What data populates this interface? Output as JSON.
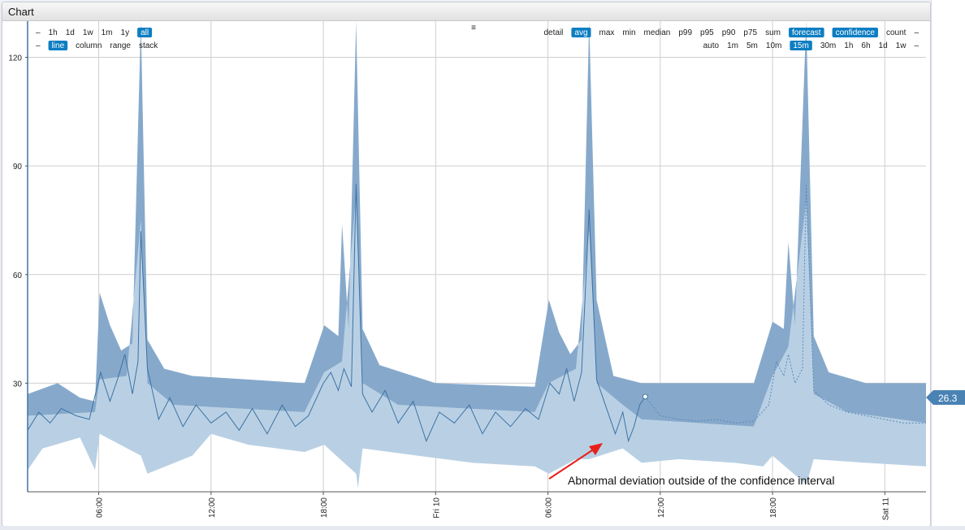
{
  "window": {
    "title": "Chart"
  },
  "toolbar": {
    "menu_glyph": "≡",
    "left_row1": [
      {
        "label": "–",
        "selected": false
      },
      {
        "label": "1h",
        "selected": false
      },
      {
        "label": "1d",
        "selected": false
      },
      {
        "label": "1w",
        "selected": false
      },
      {
        "label": "1m",
        "selected": false
      },
      {
        "label": "1y",
        "selected": false
      },
      {
        "label": "all",
        "selected": true
      }
    ],
    "left_row2": [
      {
        "label": "–",
        "selected": false
      },
      {
        "label": "line",
        "selected": true
      },
      {
        "label": "column",
        "selected": false
      },
      {
        "label": "range",
        "selected": false
      },
      {
        "label": "stack",
        "selected": false
      }
    ],
    "right_row1": [
      {
        "label": "detail",
        "selected": false
      },
      {
        "label": "avg",
        "selected": true
      },
      {
        "label": "max",
        "selected": false
      },
      {
        "label": "min",
        "selected": false
      },
      {
        "label": "median",
        "selected": false
      },
      {
        "label": "p99",
        "selected": false
      },
      {
        "label": "p95",
        "selected": false
      },
      {
        "label": "p90",
        "selected": false
      },
      {
        "label": "p75",
        "selected": false
      },
      {
        "label": "sum",
        "selected": false
      },
      {
        "label": "forecast",
        "selected": true
      },
      {
        "label": "confidence",
        "selected": true
      },
      {
        "label": "count",
        "selected": false
      },
      {
        "label": "–",
        "selected": false
      }
    ],
    "right_row2": [
      {
        "label": "auto",
        "selected": false
      },
      {
        "label": "1m",
        "selected": false
      },
      {
        "label": "5m",
        "selected": false
      },
      {
        "label": "10m",
        "selected": false
      },
      {
        "label": "15m",
        "selected": true
      },
      {
        "label": "30m",
        "selected": false
      },
      {
        "label": "1h",
        "selected": false
      },
      {
        "label": "6h",
        "selected": false
      },
      {
        "label": "1d",
        "selected": false
      },
      {
        "label": "1w",
        "selected": false
      },
      {
        "label": "–",
        "selected": false
      }
    ]
  },
  "value_badge": "26.3",
  "annotation": {
    "text": "Abnormal deviation outside of the confidence interval"
  },
  "colors": {
    "band_upper": "#86a9cb",
    "band_lower": "#b9d0e4",
    "line": "#3d72a4",
    "forecast": "#5a89b6",
    "badge": "#4a82b4",
    "selected_button": "#0d7ec2",
    "annotation_arrow": "#e8201a",
    "grid": "#cfcfcf",
    "axis": "#3f73a6"
  },
  "chart_data": {
    "type": "area",
    "x_unit": "hours since Thu 00:00",
    "x_range": [
      2.2,
      50.2
    ],
    "ylim": [
      0,
      130
    ],
    "y_ticks": [
      30,
      60,
      90,
      120
    ],
    "x_ticks": [
      {
        "x": 6,
        "label": "06:00"
      },
      {
        "x": 12,
        "label": "12:00"
      },
      {
        "x": 18,
        "label": "18:00"
      },
      {
        "x": 24,
        "label": "Fri 10"
      },
      {
        "x": 30,
        "label": "06:00"
      },
      {
        "x": 36,
        "label": "12:00"
      },
      {
        "x": 42,
        "label": "18:00"
      },
      {
        "x": 48,
        "label": "Sat 11"
      }
    ],
    "confidence_upper": [
      [
        2.2,
        27
      ],
      [
        3.8,
        30
      ],
      [
        5.0,
        26
      ],
      [
        5.8,
        25
      ],
      [
        6.05,
        55
      ],
      [
        6.6,
        46
      ],
      [
        7.2,
        39
      ],
      [
        7.8,
        41
      ],
      [
        8.25,
        130
      ],
      [
        8.6,
        42
      ],
      [
        9.5,
        34
      ],
      [
        11,
        32
      ],
      [
        14,
        31
      ],
      [
        17,
        30
      ],
      [
        18.05,
        46
      ],
      [
        18.8,
        43
      ],
      [
        19.0,
        74
      ],
      [
        19.35,
        45
      ],
      [
        19.75,
        130
      ],
      [
        20.1,
        45
      ],
      [
        21,
        35
      ],
      [
        24,
        30
      ],
      [
        29.3,
        29
      ],
      [
        30.05,
        53
      ],
      [
        30.6,
        44
      ],
      [
        31.2,
        38
      ],
      [
        31.8,
        42
      ],
      [
        32.2,
        130
      ],
      [
        32.6,
        53
      ],
      [
        33.5,
        32
      ],
      [
        35,
        30
      ],
      [
        38,
        30
      ],
      [
        41,
        30
      ],
      [
        42.0,
        47
      ],
      [
        42.6,
        45
      ],
      [
        42.85,
        69
      ],
      [
        43.2,
        46
      ],
      [
        43.8,
        130
      ],
      [
        44.2,
        43
      ],
      [
        45,
        33
      ],
      [
        47,
        30
      ],
      [
        50.2,
        30
      ]
    ],
    "confidence_mid": [
      [
        2.2,
        21
      ],
      [
        5.8,
        22
      ],
      [
        6.05,
        31
      ],
      [
        7.5,
        32
      ],
      [
        8.25,
        75
      ],
      [
        8.6,
        30
      ],
      [
        10,
        24
      ],
      [
        17,
        22
      ],
      [
        18.05,
        33
      ],
      [
        19.0,
        36
      ],
      [
        19.75,
        82
      ],
      [
        20.1,
        30
      ],
      [
        22,
        24
      ],
      [
        29.3,
        22
      ],
      [
        30.05,
        30
      ],
      [
        31.5,
        34
      ],
      [
        32.2,
        72
      ],
      [
        32.6,
        30
      ],
      [
        34,
        24
      ],
      [
        35,
        20
      ],
      [
        38,
        19
      ],
      [
        41,
        18
      ],
      [
        42.0,
        32
      ],
      [
        42.85,
        40
      ],
      [
        43.8,
        80
      ],
      [
        44.2,
        27
      ],
      [
        46,
        22
      ],
      [
        50.2,
        19
      ]
    ],
    "confidence_lower": [
      [
        2.2,
        6
      ],
      [
        3,
        12
      ],
      [
        5,
        15
      ],
      [
        5.8,
        6
      ],
      [
        6.05,
        16
      ],
      [
        8.25,
        10
      ],
      [
        8.6,
        5
      ],
      [
        11,
        10
      ],
      [
        12,
        16
      ],
      [
        14,
        13
      ],
      [
        17,
        11
      ],
      [
        18.05,
        13
      ],
      [
        19.75,
        5
      ],
      [
        19.85,
        1
      ],
      [
        20.1,
        12
      ],
      [
        23,
        10
      ],
      [
        26,
        8
      ],
      [
        29.3,
        7
      ],
      [
        30.05,
        5
      ],
      [
        31.5,
        9
      ],
      [
        32.2,
        9
      ],
      [
        34,
        12
      ],
      [
        35,
        8
      ],
      [
        37,
        9
      ],
      [
        40,
        8
      ],
      [
        41.5,
        7
      ],
      [
        42.0,
        10
      ],
      [
        43.8,
        2
      ],
      [
        44.2,
        9
      ],
      [
        47,
        8
      ],
      [
        50.2,
        7
      ]
    ],
    "series": [
      {
        "name": "avg",
        "values": [
          [
            2.2,
            17
          ],
          [
            2.8,
            22
          ],
          [
            3.4,
            19
          ],
          [
            4.0,
            23
          ],
          [
            4.8,
            21
          ],
          [
            5.5,
            20
          ],
          [
            6.1,
            33
          ],
          [
            6.6,
            25
          ],
          [
            7.0,
            31
          ],
          [
            7.4,
            38
          ],
          [
            7.8,
            27
          ],
          [
            8.1,
            36
          ],
          [
            8.25,
            72
          ],
          [
            8.6,
            34
          ],
          [
            9.2,
            20
          ],
          [
            9.8,
            26
          ],
          [
            10.5,
            18
          ],
          [
            11.2,
            24
          ],
          [
            12.0,
            19
          ],
          [
            12.8,
            22
          ],
          [
            13.5,
            17
          ],
          [
            14.2,
            23
          ],
          [
            15.0,
            16
          ],
          [
            15.8,
            24
          ],
          [
            16.5,
            18
          ],
          [
            17.2,
            21
          ],
          [
            18.0,
            30
          ],
          [
            18.4,
            33
          ],
          [
            18.8,
            28
          ],
          [
            19.1,
            34
          ],
          [
            19.5,
            29
          ],
          [
            19.75,
            85
          ],
          [
            20.1,
            27
          ],
          [
            20.6,
            22
          ],
          [
            21.3,
            28
          ],
          [
            22.0,
            19
          ],
          [
            22.8,
            25
          ],
          [
            23.5,
            14
          ],
          [
            24.2,
            22
          ],
          [
            25.0,
            19
          ],
          [
            25.8,
            24
          ],
          [
            26.5,
            16
          ],
          [
            27.2,
            22
          ],
          [
            28.0,
            18
          ],
          [
            28.8,
            23
          ],
          [
            29.5,
            20
          ],
          [
            30.1,
            30
          ],
          [
            30.6,
            27
          ],
          [
            31.0,
            34
          ],
          [
            31.4,
            25
          ],
          [
            31.8,
            33
          ],
          [
            32.2,
            78
          ],
          [
            32.6,
            31
          ],
          [
            33.0,
            25
          ],
          [
            33.6,
            16
          ],
          [
            34.0,
            22
          ],
          [
            34.3,
            14
          ],
          [
            34.6,
            18
          ],
          [
            34.9,
            24
          ],
          [
            35.2,
            26.3
          ]
        ]
      },
      {
        "name": "forecast",
        "values": [
          [
            35.2,
            26.3
          ],
          [
            36,
            21
          ],
          [
            37,
            20
          ],
          [
            38,
            19.5
          ],
          [
            39,
            20
          ],
          [
            40,
            19
          ],
          [
            41,
            19.5
          ],
          [
            41.8,
            24
          ],
          [
            42.2,
            36
          ],
          [
            42.6,
            32
          ],
          [
            42.85,
            38
          ],
          [
            43.2,
            30
          ],
          [
            43.6,
            34
          ],
          [
            43.8,
            85
          ],
          [
            44.2,
            28
          ],
          [
            45,
            24
          ],
          [
            46,
            22
          ],
          [
            47,
            21
          ],
          [
            48,
            20
          ],
          [
            49,
            19
          ],
          [
            50.2,
            19
          ]
        ]
      }
    ]
  }
}
